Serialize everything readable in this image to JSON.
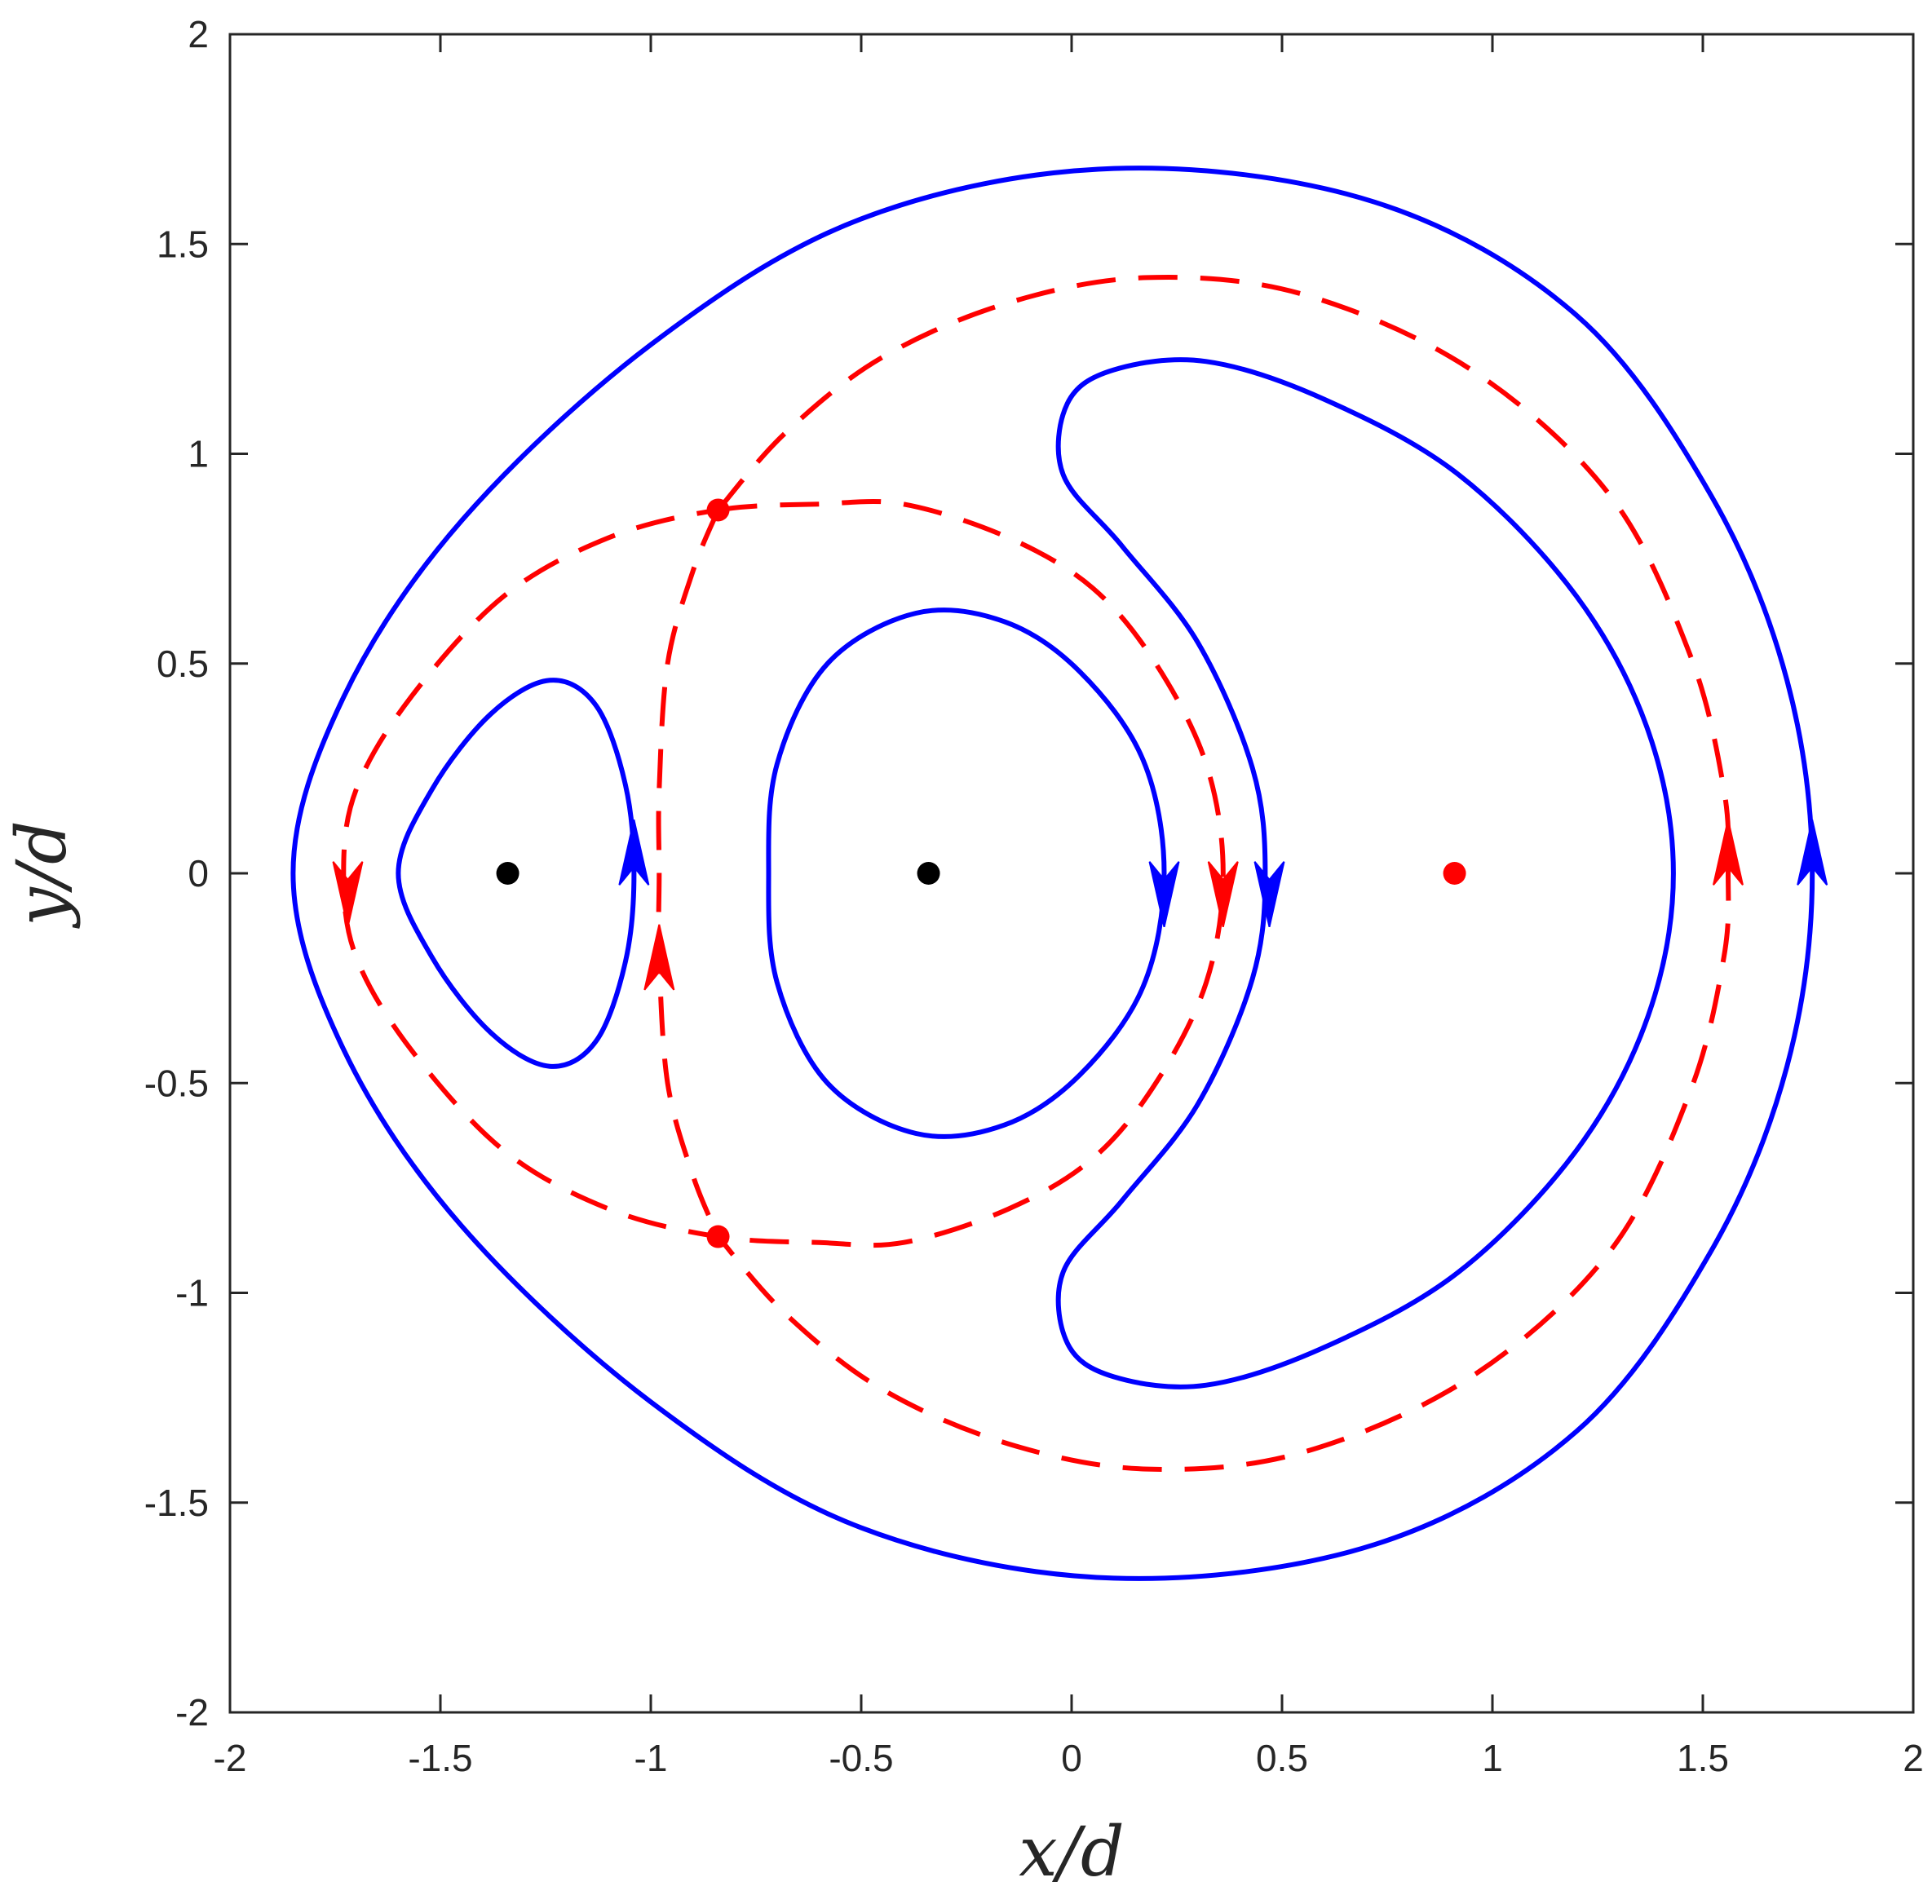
{
  "chart_data": {
    "type": "line",
    "title": "",
    "xlabel": "x/d",
    "ylabel": "y/d",
    "xlim": [
      -2,
      2
    ],
    "ylim": [
      -2,
      2
    ],
    "xticks": [
      -2,
      -1.5,
      -1,
      -0.5,
      0,
      0.5,
      1,
      1.5,
      2
    ],
    "yticks": [
      -2,
      -1.5,
      -1,
      -0.5,
      0,
      0.5,
      1,
      1.5,
      2
    ],
    "xtick_labels": [
      "-2",
      "-1.5",
      "-1",
      "-0.5",
      "0",
      "0.5",
      "1",
      "1.5",
      "2"
    ],
    "ytick_labels": [
      "-2",
      "-1.5",
      "-1",
      "-0.5",
      "0",
      "0.5",
      "1",
      "1.5",
      "2"
    ],
    "grid": false,
    "colors": {
      "solid": "#0000ff",
      "dashed": "#ff0000",
      "point": "#000000",
      "axis": "#262626"
    },
    "series": [
      {
        "style": "solid",
        "color": "#0000ff",
        "points": [
          [
            -1.04,
            0
          ],
          [
            -1.06,
            0.21
          ],
          [
            -1.13,
            0.4
          ],
          [
            -1.24,
            0.46
          ],
          [
            -1.38,
            0.38
          ],
          [
            -1.52,
            0.2
          ],
          [
            -1.6,
            0
          ],
          [
            -1.52,
            -0.2
          ],
          [
            -1.38,
            -0.38
          ],
          [
            -1.24,
            -0.46
          ],
          [
            -1.13,
            -0.4
          ],
          [
            -1.06,
            -0.21
          ],
          [
            -1.04,
            0
          ]
        ],
        "arrows": [
          {
            "x": -1.04,
            "y": 0.05,
            "direction": "up"
          }
        ]
      },
      {
        "style": "solid",
        "color": "#0000ff",
        "points": [
          [
            0.22,
            0
          ],
          [
            0.17,
            0.27
          ],
          [
            0.02,
            0.48
          ],
          [
            -0.16,
            0.6
          ],
          [
            -0.37,
            0.62
          ],
          [
            -0.58,
            0.5
          ],
          [
            -0.7,
            0.26
          ],
          [
            -0.72,
            0
          ],
          [
            -0.7,
            -0.26
          ],
          [
            -0.58,
            -0.5
          ],
          [
            -0.37,
            -0.62
          ],
          [
            -0.16,
            -0.6
          ],
          [
            0.02,
            -0.48
          ],
          [
            0.17,
            -0.27
          ],
          [
            0.22,
            0
          ]
        ],
        "arrows": [
          {
            "x": 0.22,
            "y": -0.05,
            "direction": "down"
          }
        ]
      },
      {
        "style": "solid",
        "color": "#0000ff",
        "points": [
          [
            0.46,
            0
          ],
          [
            0.43,
            0.25
          ],
          [
            0.3,
            0.55
          ],
          [
            0.12,
            0.78
          ],
          [
            -0.02,
            0.95
          ],
          [
            -0.01,
            1.12
          ],
          [
            0.1,
            1.2
          ],
          [
            0.32,
            1.22
          ],
          [
            0.6,
            1.13
          ],
          [
            0.92,
            0.95
          ],
          [
            1.2,
            0.66
          ],
          [
            1.37,
            0.34
          ],
          [
            1.43,
            0
          ],
          [
            1.37,
            -0.34
          ],
          [
            1.2,
            -0.66
          ],
          [
            0.92,
            -0.95
          ],
          [
            0.6,
            -1.13
          ],
          [
            0.32,
            -1.22
          ],
          [
            0.1,
            -1.2
          ],
          [
            -0.01,
            -1.12
          ],
          [
            -0.02,
            -0.95
          ],
          [
            0.12,
            -0.78
          ],
          [
            0.3,
            -0.55
          ],
          [
            0.43,
            -0.25
          ],
          [
            0.46,
            0
          ]
        ],
        "arrows": [
          {
            "x": 0.47,
            "y": -0.05,
            "direction": "down"
          }
        ]
      },
      {
        "style": "solid",
        "color": "#0000ff",
        "points": [
          [
            1.76,
            0
          ],
          [
            1.7,
            0.46
          ],
          [
            1.52,
            0.9
          ],
          [
            1.2,
            1.33
          ],
          [
            0.72,
            1.6
          ],
          [
            0.1,
            1.68
          ],
          [
            -0.5,
            1.56
          ],
          [
            -1.0,
            1.26
          ],
          [
            -1.45,
            0.84
          ],
          [
            -1.73,
            0.42
          ],
          [
            -1.85,
            0
          ],
          [
            -1.73,
            -0.42
          ],
          [
            -1.45,
            -0.84
          ],
          [
            -1.0,
            -1.26
          ],
          [
            -0.5,
            -1.56
          ],
          [
            0.1,
            -1.68
          ],
          [
            0.72,
            -1.6
          ],
          [
            1.2,
            -1.33
          ],
          [
            1.52,
            -0.9
          ],
          [
            1.7,
            -0.46
          ],
          [
            1.76,
            0
          ]
        ],
        "arrows": [
          {
            "x": 1.76,
            "y": 0.05,
            "direction": "up"
          }
        ]
      },
      {
        "style": "dashed",
        "color": "#ff0000",
        "points": [
          [
            -0.84,
            0.866
          ],
          [
            -0.6,
            0.88
          ],
          [
            -0.4,
            0.88
          ],
          [
            -0.15,
            0.8
          ],
          [
            0.05,
            0.68
          ],
          [
            0.2,
            0.5
          ],
          [
            0.32,
            0.26
          ],
          [
            0.36,
            0
          ],
          [
            0.32,
            -0.26
          ],
          [
            0.2,
            -0.5
          ],
          [
            0.05,
            -0.68
          ],
          [
            -0.15,
            -0.8
          ],
          [
            -0.4,
            -0.88
          ],
          [
            -0.6,
            -0.88
          ],
          [
            -0.84,
            -0.866
          ],
          [
            -1.1,
            -0.8
          ],
          [
            -1.35,
            -0.66
          ],
          [
            -1.57,
            -0.42
          ],
          [
            -1.7,
            -0.2
          ],
          [
            -1.73,
            0
          ],
          [
            -1.7,
            0.2
          ],
          [
            -1.57,
            0.42
          ],
          [
            -1.35,
            0.66
          ],
          [
            -1.1,
            0.8
          ],
          [
            -0.84,
            0.866
          ]
        ],
        "arrows": [
          {
            "x": 0.36,
            "y": -0.05,
            "direction": "down"
          },
          {
            "x": -1.72,
            "y": -0.05,
            "direction": "down"
          }
        ]
      },
      {
        "style": "dashed",
        "color": "#ff0000",
        "points": [
          [
            -0.84,
            0.866
          ],
          [
            -0.9,
            0.72
          ],
          [
            -0.96,
            0.5
          ],
          [
            -0.98,
            0.2
          ],
          [
            -0.98,
            0
          ],
          [
            -0.98,
            -0.2
          ],
          [
            -0.96,
            -0.5
          ],
          [
            -0.9,
            -0.72
          ],
          [
            -0.84,
            -0.866
          ]
        ],
        "arrows": [
          {
            "x": -0.98,
            "y": -0.2,
            "direction": "up"
          }
        ]
      },
      {
        "style": "dashed",
        "color": "#ff0000",
        "points": [
          [
            -0.84,
            0.866
          ],
          [
            -0.68,
            1.05
          ],
          [
            -0.45,
            1.23
          ],
          [
            -0.15,
            1.36
          ],
          [
            0.18,
            1.42
          ],
          [
            0.55,
            1.38
          ],
          [
            0.95,
            1.2
          ],
          [
            1.28,
            0.9
          ],
          [
            1.47,
            0.52
          ],
          [
            1.55,
            0.2
          ],
          [
            1.56,
            0
          ],
          [
            1.55,
            -0.2
          ],
          [
            1.47,
            -0.52
          ],
          [
            1.28,
            -0.9
          ],
          [
            0.95,
            -1.2
          ],
          [
            0.55,
            -1.38
          ],
          [
            0.18,
            -1.42
          ],
          [
            -0.15,
            -1.36
          ],
          [
            -0.45,
            -1.23
          ],
          [
            -0.68,
            -1.05
          ],
          [
            -0.84,
            -0.866
          ]
        ],
        "arrows": [
          {
            "x": 1.56,
            "y": 0.05,
            "direction": "up"
          }
        ]
      }
    ],
    "points": [
      {
        "x": -1.34,
        "y": 0,
        "color": "#000000"
      },
      {
        "x": -0.34,
        "y": 0,
        "color": "#000000"
      },
      {
        "x": 0.91,
        "y": 0,
        "color": "#ff0000"
      },
      {
        "x": -0.84,
        "y": 0.866,
        "color": "#ff0000"
      },
      {
        "x": -0.84,
        "y": -0.866,
        "color": "#ff0000"
      }
    ]
  }
}
